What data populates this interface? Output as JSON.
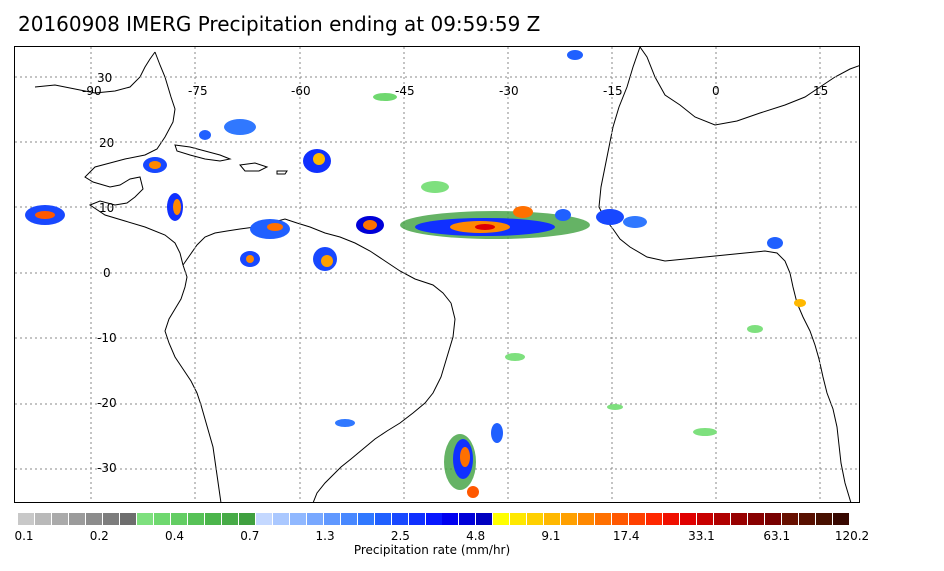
{
  "title": "20160908 IMERG Precipitation ending at 09:59:59 Z",
  "map": {
    "lon_labels": [
      "-90",
      "-75",
      "-60",
      "-45",
      "-30",
      "-15",
      "0",
      "15"
    ],
    "lat_labels": [
      "30",
      "20",
      "10",
      "0",
      "-10",
      "-20",
      "-30"
    ],
    "land_fill": "#ffffff",
    "grid_color": "#888888"
  },
  "colorbar": {
    "label": "Precipitation rate (mm/hr)",
    "tick_labels": [
      "0.1",
      "0.2",
      "0.4",
      "0.7",
      "1.3",
      "2.5",
      "4.8",
      "9.1",
      "17.4",
      "33.1",
      "63.1",
      "120.2"
    ],
    "colors": [
      "#c8c8c8",
      "#b9b9b9",
      "#aaaaaa",
      "#9b9b9b",
      "#8c8c8c",
      "#7d7d7d",
      "#6e6e6e",
      "#7ee07e",
      "#6fd86f",
      "#63cd63",
      "#57c257",
      "#4bb54b",
      "#47ab47",
      "#3fa03f",
      "#c4d8ff",
      "#aac8ff",
      "#90b8ff",
      "#78a8ff",
      "#6098ff",
      "#4888ff",
      "#3078ff",
      "#2060ff",
      "#1848ff",
      "#1030ff",
      "#0818ff",
      "#0000f0",
      "#0000d8",
      "#0000c0",
      "#ffff00",
      "#ffe800",
      "#ffd000",
      "#ffb800",
      "#ffa000",
      "#ff8800",
      "#ff7000",
      "#ff5800",
      "#ff4000",
      "#ff2800",
      "#f01000",
      "#e00000",
      "#c80000",
      "#b00000",
      "#980000",
      "#880000",
      "#780000",
      "#681000",
      "#581000",
      "#481000",
      "#380800"
    ]
  }
}
